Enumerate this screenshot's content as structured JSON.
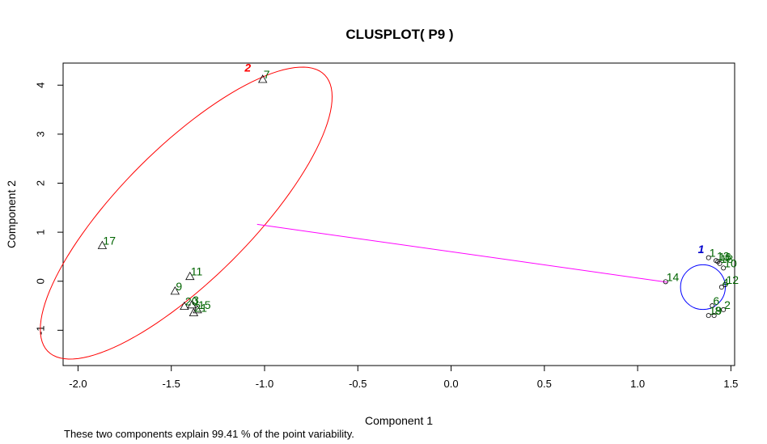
{
  "chart_data": {
    "type": "scatter",
    "title": "CLUSPLOT( P9 )",
    "xlabel": "Component 1",
    "ylabel": "Component 2",
    "xlim": [
      -2.08,
      1.52
    ],
    "ylim": [
      -1.72,
      4.45
    ],
    "x_ticks": [
      "-2.0",
      "-1.5",
      "-1.0",
      "-0.5",
      "0.0",
      "0.5",
      "1.0",
      "1.5"
    ],
    "x_tick_values": [
      -2.0,
      -1.5,
      -1.0,
      -0.5,
      0.0,
      0.5,
      1.0,
      1.5
    ],
    "y_ticks": [
      "-1",
      "0",
      "1",
      "2",
      "3",
      "4"
    ],
    "y_tick_values": [
      -1,
      0,
      1,
      2,
      3,
      4
    ],
    "colors": {
      "cluster1": "#0000ff",
      "cluster2": "#ff0000",
      "points": "#006400",
      "connector": "#ff00ff",
      "cluster_label_1": "#0000cc",
      "cluster_label_2": "#ff0000"
    },
    "clusters": [
      {
        "label": "1",
        "shape": "circle",
        "center": [
          1.35,
          -0.12
        ],
        "radius": 0.12,
        "label_pos": [
          1.34,
          0.57
        ]
      },
      {
        "label": "2",
        "shape": "triangle",
        "ellipse": {
          "center": [
            -1.42,
            1.39
          ],
          "semi_major": 3.13,
          "semi_minor": 0.7,
          "angle_deg": 34.6
        },
        "label_pos": [
          -1.09,
          4.28
        ]
      }
    ],
    "connector": {
      "from": [
        -1.04,
        1.16
      ],
      "to": [
        1.16,
        -0.02
      ]
    },
    "points": [
      {
        "label": "7",
        "x": -1.01,
        "y": 4.12,
        "cluster": 2
      },
      {
        "label": "17",
        "x": -1.87,
        "y": 0.73,
        "cluster": 2
      },
      {
        "label": "11",
        "x": -1.4,
        "y": 0.1,
        "cluster": 2
      },
      {
        "label": "9",
        "x": -1.48,
        "y": -0.2,
        "cluster": 2
      },
      {
        "label": "20",
        "x": -1.43,
        "y": -0.51,
        "cluster": 2
      },
      {
        "label": "3",
        "x": -1.39,
        "y": -0.48,
        "cluster": 2
      },
      {
        "label": "15",
        "x": -1.36,
        "y": -0.58,
        "cluster": 2
      },
      {
        "label": "21",
        "x": -1.38,
        "y": -0.64,
        "cluster": 2
      },
      {
        "label": "14",
        "x": 1.15,
        "y": -0.01,
        "cluster": 1
      },
      {
        "label": "1",
        "x": 1.38,
        "y": 0.48,
        "cluster": 1
      },
      {
        "label": "13",
        "x": 1.42,
        "y": 0.42,
        "cluster": 1
      },
      {
        "label": "16",
        "x": 1.43,
        "y": 0.4,
        "cluster": 1
      },
      {
        "label": "18",
        "x": 1.44,
        "y": 0.36,
        "cluster": 1
      },
      {
        "label": "10",
        "x": 1.46,
        "y": 0.27,
        "cluster": 1
      },
      {
        "label": "12",
        "x": 1.47,
        "y": -0.07,
        "cluster": 1
      },
      {
        "label": "4",
        "x": 1.45,
        "y": -0.12,
        "cluster": 1
      },
      {
        "label": "6",
        "x": 1.4,
        "y": -0.5,
        "cluster": 1
      },
      {
        "label": "2",
        "x": 1.46,
        "y": -0.58,
        "cluster": 1
      },
      {
        "label": "19",
        "x": 1.38,
        "y": -0.7,
        "cluster": 1
      },
      {
        "label": "8",
        "x": 1.41,
        "y": -0.7,
        "cluster": 1
      }
    ]
  },
  "footnote": "These two components explain 99.41 % of the point variability."
}
